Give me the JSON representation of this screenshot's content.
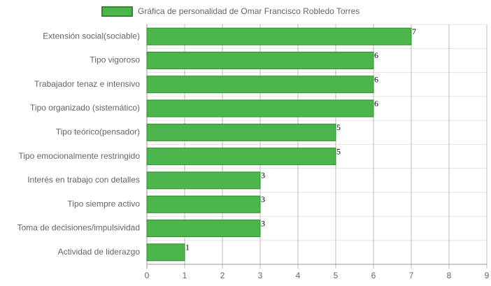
{
  "chart_data": {
    "type": "bar",
    "orientation": "horizontal",
    "categories": [
      "Extensión social(sociable)",
      "Tipo vigoroso",
      "Trabajador tenaz e intensivo",
      "Tipo organizado (sistemático)",
      "Tipo teórico(pensador)",
      "Tipo emocionalmente restringido",
      "Interés en trabajo con detalles",
      "Tipo siempre activo",
      "Toma de decisiones/impulsividad",
      "Actividad de liderazgo"
    ],
    "series": [
      {
        "name": "Gráfica de personalidad de Omar Francisco Robledo Torres",
        "color": "#4cb54c",
        "border": "#2e8b2e",
        "values": [
          7,
          6,
          6,
          6,
          5,
          5,
          3,
          3,
          3,
          1
        ]
      }
    ],
    "xlim": [
      0,
      9
    ],
    "xticks": [
      0,
      1,
      2,
      3,
      4,
      5,
      6,
      7,
      8,
      9
    ],
    "grid": true,
    "legend": "top"
  }
}
